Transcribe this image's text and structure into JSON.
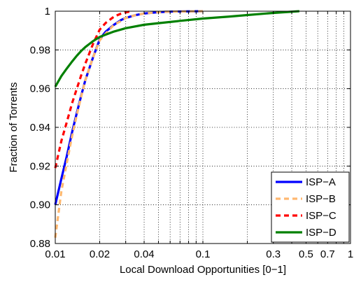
{
  "chart_data": {
    "type": "line",
    "title": "",
    "xlabel": "Local Download Opportunities [0−1]",
    "ylabel": "Fraction of Torrents",
    "xscale": "log",
    "xlim": [
      0.01,
      1
    ],
    "ylim": [
      0.88,
      1
    ],
    "grid": true,
    "legend_position": "bottom-right",
    "x_ticks": [
      0.01,
      0.02,
      0.04,
      0.1,
      0.3,
      0.5,
      0.7,
      1
    ],
    "x_tick_labels": [
      "0.01",
      "0.02",
      "0.04",
      "0.1",
      "0.3",
      "0.5",
      "0.7",
      "1"
    ],
    "y_ticks": [
      0.88,
      0.9,
      0.92,
      0.94,
      0.96,
      0.98,
      1.0
    ],
    "y_tick_labels": [
      "0.88",
      "0.90",
      "0.92",
      "0.94",
      "0.96",
      "0.98",
      "1"
    ],
    "series": [
      {
        "name": "ISP−A",
        "color": "#0000ff",
        "dash": "solid",
        "x": [
          0.01,
          0.011,
          0.012,
          0.013,
          0.014,
          0.015,
          0.016,
          0.018,
          0.02,
          0.022,
          0.025,
          0.028,
          0.03,
          0.035,
          0.04,
          0.05,
          0.06,
          0.08,
          0.1
        ],
        "y": [
          0.9,
          0.9135,
          0.9255,
          0.9375,
          0.9475,
          0.9565,
          0.9645,
          0.976,
          0.9855,
          0.9895,
          0.993,
          0.9955,
          0.9965,
          0.998,
          0.9988,
          0.9995,
          0.9998,
          0.9999,
          1.0
        ]
      },
      {
        "name": "ISP−B",
        "color": "#ffb870",
        "dash": "dash",
        "x": [
          0.01,
          0.011,
          0.012,
          0.013,
          0.014,
          0.015,
          0.016,
          0.018,
          0.02,
          0.022,
          0.025,
          0.028,
          0.03,
          0.035,
          0.04,
          0.05,
          0.06,
          0.08,
          0.1
        ],
        "y": [
          0.883,
          0.907,
          0.922,
          0.9355,
          0.9465,
          0.956,
          0.9645,
          0.976,
          0.985,
          0.9885,
          0.993,
          0.995,
          0.9965,
          0.998,
          0.9988,
          0.9995,
          0.9998,
          0.9999,
          1.0
        ]
      },
      {
        "name": "ISP−C",
        "color": "#ff0000",
        "dash": "dash",
        "x": [
          0.01,
          0.011,
          0.012,
          0.013,
          0.014,
          0.015,
          0.016,
          0.018,
          0.02,
          0.022,
          0.025,
          0.028,
          0.03,
          0.033
        ],
        "y": [
          0.919,
          0.933,
          0.943,
          0.9525,
          0.96,
          0.967,
          0.973,
          0.983,
          0.9905,
          0.994,
          0.9972,
          0.9988,
          0.9994,
          1.0
        ]
      },
      {
        "name": "ISP−D",
        "color": "#008000",
        "dash": "solid",
        "x": [
          0.01,
          0.011,
          0.012,
          0.013,
          0.014,
          0.015,
          0.016,
          0.018,
          0.02,
          0.025,
          0.03,
          0.04,
          0.05,
          0.07,
          0.1,
          0.15,
          0.2,
          0.3,
          0.45
        ],
        "y": [
          0.961,
          0.9665,
          0.9705,
          0.974,
          0.977,
          0.9795,
          0.9815,
          0.9845,
          0.9867,
          0.9895,
          0.9912,
          0.993,
          0.9938,
          0.995,
          0.9962,
          0.9972,
          0.998,
          0.9991,
          1.0
        ]
      }
    ]
  }
}
